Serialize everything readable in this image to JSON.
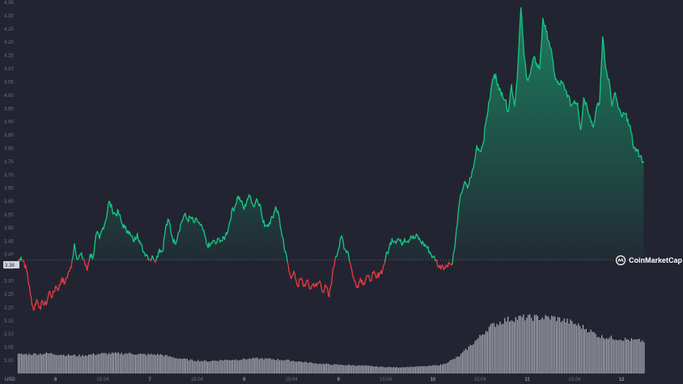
{
  "chart_data": {
    "type": "area",
    "title": "",
    "currency_label": "USD",
    "watermark": "CoinMarketCap",
    "baseline_label": "3.38",
    "baseline_value": 3.38,
    "ylim": [
      3.0,
      4.35
    ],
    "y_ticks": [
      "3.00",
      "3.05",
      "3.10",
      "3.15",
      "3.20",
      "3.25",
      "3.30",
      "3.35",
      "3.40",
      "3.45",
      "3.50",
      "3.55",
      "3.60",
      "3.65",
      "3.70",
      "3.75",
      "3.80",
      "3.85",
      "3.90",
      "3.95",
      "4.00",
      "4.05",
      "4.10",
      "4.15",
      "4.20",
      "4.25",
      "4.30",
      "4.35"
    ],
    "x_ticks": [
      {
        "label": "6",
        "bold": true,
        "t": 1.2
      },
      {
        "label": "15:04",
        "bold": false,
        "t": 2.7
      },
      {
        "label": "7",
        "bold": true,
        "t": 4.2
      },
      {
        "label": "15:04",
        "bold": false,
        "t": 5.7
      },
      {
        "label": "8",
        "bold": true,
        "t": 7.2
      },
      {
        "label": "15:04",
        "bold": false,
        "t": 8.7
      },
      {
        "label": "9",
        "bold": true,
        "t": 10.2
      },
      {
        "label": "15:04",
        "bold": false,
        "t": 11.7
      },
      {
        "label": "10",
        "bold": true,
        "t": 13.2
      },
      {
        "label": "15:04",
        "bold": false,
        "t": 14.7
      },
      {
        "label": "11",
        "bold": true,
        "t": 16.2
      },
      {
        "label": "15:04",
        "bold": false,
        "t": 17.7
      },
      {
        "label": "12",
        "bold": true,
        "t": 19.2
      }
    ],
    "x_range": [
      0,
      21.0
    ],
    "colors": {
      "up": "#16c784",
      "down": "#ea3943",
      "background": "#222531",
      "baseline": "#6b7280",
      "volume": "#c9ccd3"
    },
    "price_series": [
      [
        0.0,
        3.37
      ],
      [
        0.1,
        3.39
      ],
      [
        0.2,
        3.37
      ],
      [
        0.3,
        3.33
      ],
      [
        0.4,
        3.25
      ],
      [
        0.5,
        3.19
      ],
      [
        0.6,
        3.23
      ],
      [
        0.7,
        3.2
      ],
      [
        0.8,
        3.22
      ],
      [
        0.9,
        3.21
      ],
      [
        1.0,
        3.26
      ],
      [
        1.1,
        3.24
      ],
      [
        1.2,
        3.28
      ],
      [
        1.3,
        3.27
      ],
      [
        1.4,
        3.31
      ],
      [
        1.5,
        3.29
      ],
      [
        1.6,
        3.33
      ],
      [
        1.7,
        3.35
      ],
      [
        1.8,
        3.44
      ],
      [
        1.9,
        3.38
      ],
      [
        2.0,
        3.4
      ],
      [
        2.1,
        3.38
      ],
      [
        2.2,
        3.34
      ],
      [
        2.3,
        3.4
      ],
      [
        2.4,
        3.39
      ],
      [
        2.5,
        3.48
      ],
      [
        2.6,
        3.46
      ],
      [
        2.7,
        3.5
      ],
      [
        2.8,
        3.53
      ],
      [
        2.9,
        3.6
      ],
      [
        3.0,
        3.57
      ],
      [
        3.1,
        3.55
      ],
      [
        3.2,
        3.56
      ],
      [
        3.3,
        3.52
      ],
      [
        3.4,
        3.5
      ],
      [
        3.5,
        3.49
      ],
      [
        3.6,
        3.47
      ],
      [
        3.7,
        3.45
      ],
      [
        3.8,
        3.48
      ],
      [
        3.9,
        3.44
      ],
      [
        4.0,
        3.41
      ],
      [
        4.1,
        3.4
      ],
      [
        4.2,
        3.38
      ],
      [
        4.3,
        3.39
      ],
      [
        4.4,
        3.38
      ],
      [
        4.5,
        3.42
      ],
      [
        4.6,
        3.41
      ],
      [
        4.7,
        3.5
      ],
      [
        4.8,
        3.53
      ],
      [
        4.9,
        3.47
      ],
      [
        5.0,
        3.44
      ],
      [
        5.1,
        3.48
      ],
      [
        5.2,
        3.52
      ],
      [
        5.3,
        3.55
      ],
      [
        5.4,
        3.53
      ],
      [
        5.5,
        3.54
      ],
      [
        5.6,
        3.52
      ],
      [
        5.7,
        3.53
      ],
      [
        5.8,
        3.51
      ],
      [
        5.9,
        3.49
      ],
      [
        6.0,
        3.44
      ],
      [
        6.1,
        3.43
      ],
      [
        6.2,
        3.45
      ],
      [
        6.3,
        3.44
      ],
      [
        6.4,
        3.46
      ],
      [
        6.5,
        3.45
      ],
      [
        6.6,
        3.47
      ],
      [
        6.7,
        3.5
      ],
      [
        6.8,
        3.56
      ],
      [
        6.9,
        3.58
      ],
      [
        7.0,
        3.62
      ],
      [
        7.1,
        3.6
      ],
      [
        7.2,
        3.57
      ],
      [
        7.3,
        3.61
      ],
      [
        7.4,
        3.62
      ],
      [
        7.5,
        3.58
      ],
      [
        7.6,
        3.61
      ],
      [
        7.7,
        3.59
      ],
      [
        7.8,
        3.52
      ],
      [
        7.9,
        3.51
      ],
      [
        8.0,
        3.52
      ],
      [
        8.1,
        3.54
      ],
      [
        8.2,
        3.58
      ],
      [
        8.3,
        3.55
      ],
      [
        8.4,
        3.47
      ],
      [
        8.5,
        3.41
      ],
      [
        8.6,
        3.36
      ],
      [
        8.7,
        3.31
      ],
      [
        8.8,
        3.33
      ],
      [
        8.9,
        3.28
      ],
      [
        9.0,
        3.31
      ],
      [
        9.1,
        3.28
      ],
      [
        9.2,
        3.3
      ],
      [
        9.3,
        3.27
      ],
      [
        9.4,
        3.29
      ],
      [
        9.5,
        3.28
      ],
      [
        9.6,
        3.3
      ],
      [
        9.7,
        3.26
      ],
      [
        9.8,
        3.28
      ],
      [
        9.9,
        3.24
      ],
      [
        10.0,
        3.32
      ],
      [
        10.1,
        3.39
      ],
      [
        10.2,
        3.42
      ],
      [
        10.3,
        3.47
      ],
      [
        10.4,
        3.42
      ],
      [
        10.5,
        3.41
      ],
      [
        10.6,
        3.35
      ],
      [
        10.7,
        3.3
      ],
      [
        10.8,
        3.28
      ],
      [
        10.9,
        3.31
      ],
      [
        11.0,
        3.29
      ],
      [
        11.1,
        3.32
      ],
      [
        11.2,
        3.3
      ],
      [
        11.3,
        3.33
      ],
      [
        11.4,
        3.31
      ],
      [
        11.5,
        3.33
      ],
      [
        11.6,
        3.34
      ],
      [
        11.7,
        3.39
      ],
      [
        11.8,
        3.42
      ],
      [
        11.9,
        3.46
      ],
      [
        12.0,
        3.45
      ],
      [
        12.1,
        3.46
      ],
      [
        12.2,
        3.44
      ],
      [
        12.3,
        3.46
      ],
      [
        12.4,
        3.45
      ],
      [
        12.5,
        3.47
      ],
      [
        12.6,
        3.46
      ],
      [
        12.7,
        3.47
      ],
      [
        12.8,
        3.45
      ],
      [
        12.9,
        3.44
      ],
      [
        13.0,
        3.43
      ],
      [
        13.1,
        3.41
      ],
      [
        13.2,
        3.39
      ],
      [
        13.3,
        3.38
      ],
      [
        13.4,
        3.35
      ],
      [
        13.5,
        3.36
      ],
      [
        13.6,
        3.35
      ],
      [
        13.7,
        3.37
      ],
      [
        13.8,
        3.36
      ],
      [
        13.9,
        3.43
      ],
      [
        14.0,
        3.55
      ],
      [
        14.1,
        3.63
      ],
      [
        14.2,
        3.67
      ],
      [
        14.3,
        3.65
      ],
      [
        14.4,
        3.69
      ],
      [
        14.5,
        3.73
      ],
      [
        14.6,
        3.81
      ],
      [
        14.7,
        3.79
      ],
      [
        14.8,
        3.82
      ],
      [
        14.9,
        3.91
      ],
      [
        15.0,
        3.98
      ],
      [
        15.1,
        4.06
      ],
      [
        15.2,
        4.08
      ],
      [
        15.3,
        4.02
      ],
      [
        15.4,
        4.01
      ],
      [
        15.5,
        3.98
      ],
      [
        15.6,
        3.94
      ],
      [
        15.7,
        4.04
      ],
      [
        15.8,
        3.96
      ],
      [
        15.9,
        4.1
      ],
      [
        16.0,
        4.33
      ],
      [
        16.1,
        4.15
      ],
      [
        16.2,
        4.06
      ],
      [
        16.3,
        4.08
      ],
      [
        16.4,
        4.14
      ],
      [
        16.5,
        4.12
      ],
      [
        16.6,
        4.1
      ],
      [
        16.7,
        4.29
      ],
      [
        16.8,
        4.24
      ],
      [
        16.9,
        4.2
      ],
      [
        17.0,
        4.14
      ],
      [
        17.1,
        4.06
      ],
      [
        17.2,
        4.04
      ],
      [
        17.3,
        4.05
      ],
      [
        17.4,
        4.02
      ],
      [
        17.5,
        4.0
      ],
      [
        17.6,
        3.96
      ],
      [
        17.7,
        3.98
      ],
      [
        17.8,
        3.97
      ],
      [
        17.9,
        3.87
      ],
      [
        18.0,
        3.99
      ],
      [
        18.1,
        3.96
      ],
      [
        18.2,
        3.92
      ],
      [
        18.3,
        3.88
      ],
      [
        18.4,
        3.95
      ],
      [
        18.5,
        3.97
      ],
      [
        18.6,
        4.22
      ],
      [
        18.7,
        4.1
      ],
      [
        18.8,
        4.06
      ],
      [
        18.9,
        3.96
      ],
      [
        19.0,
        4.01
      ],
      [
        19.1,
        3.95
      ],
      [
        19.2,
        3.92
      ],
      [
        19.3,
        3.93
      ],
      [
        19.4,
        3.91
      ],
      [
        19.5,
        3.86
      ],
      [
        19.6,
        3.8
      ],
      [
        19.7,
        3.79
      ],
      [
        19.8,
        3.77
      ],
      [
        19.9,
        3.75
      ]
    ],
    "volume_series": [
      [
        0.0,
        0.34
      ],
      [
        0.5,
        0.35
      ],
      [
        1.0,
        0.36
      ],
      [
        1.5,
        0.33
      ],
      [
        2.0,
        0.32
      ],
      [
        2.5,
        0.35
      ],
      [
        3.0,
        0.36
      ],
      [
        3.5,
        0.36
      ],
      [
        4.0,
        0.34
      ],
      [
        4.5,
        0.34
      ],
      [
        5.0,
        0.28
      ],
      [
        5.5,
        0.24
      ],
      [
        6.0,
        0.22
      ],
      [
        6.5,
        0.24
      ],
      [
        7.0,
        0.25
      ],
      [
        7.5,
        0.27
      ],
      [
        8.0,
        0.26
      ],
      [
        8.5,
        0.24
      ],
      [
        9.0,
        0.21
      ],
      [
        9.5,
        0.18
      ],
      [
        10.0,
        0.16
      ],
      [
        10.5,
        0.15
      ],
      [
        11.0,
        0.14
      ],
      [
        11.5,
        0.12
      ],
      [
        12.0,
        0.11
      ],
      [
        12.5,
        0.12
      ],
      [
        13.0,
        0.13
      ],
      [
        13.5,
        0.16
      ],
      [
        14.0,
        0.3
      ],
      [
        14.5,
        0.56
      ],
      [
        15.0,
        0.84
      ],
      [
        15.5,
        0.96
      ],
      [
        16.0,
        1.0
      ],
      [
        16.5,
        1.0
      ],
      [
        17.0,
        1.0
      ],
      [
        17.5,
        0.93
      ],
      [
        18.0,
        0.82
      ],
      [
        18.5,
        0.66
      ],
      [
        19.0,
        0.63
      ],
      [
        19.5,
        0.6
      ],
      [
        19.9,
        0.58
      ]
    ]
  }
}
